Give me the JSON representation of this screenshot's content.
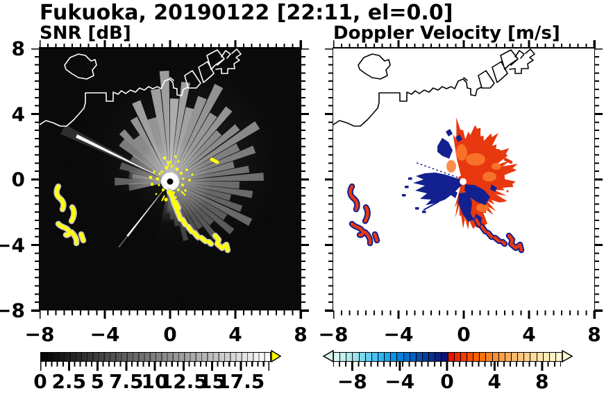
{
  "title": "Fukuoka, 20190122 [22:11, el=0.0]",
  "panels": {
    "snr": {
      "subtitle": "SNR [dB]",
      "x_tick_labels": [
        "−8",
        "−4",
        "0",
        "4",
        "8"
      ],
      "y_tick_labels": [
        "8",
        "4",
        "0",
        "−4",
        "−8"
      ],
      "colorbar": {
        "tick_labels": [
          "0",
          "2.5",
          "5",
          "7.5",
          "10",
          "12.5",
          "15",
          "17.5"
        ],
        "min": 0,
        "max": 20,
        "units": "dB",
        "style": "grayscale black to white",
        "gradient_from": "#000000",
        "gradient_to": "#ffffff",
        "overflow_arrow_color": "#ffff00"
      }
    },
    "velocity": {
      "subtitle": "Doppler Velocity [m/s]",
      "x_tick_labels": [
        "−8",
        "−4",
        "0",
        "4",
        "8"
      ],
      "colorbar": {
        "tick_labels": [
          "−8",
          "−4",
          "0",
          "4",
          "8"
        ],
        "min": -10,
        "max": 10,
        "units": "m/s",
        "style": "diverging cyan/blue to red/yellow",
        "cells": [
          "#d9f6f1",
          "#c4f0ee",
          "#aeeaec",
          "#97e2ec",
          "#7fd9ee",
          "#66cef0",
          "#4cc1f1",
          "#33b3f2",
          "#1ba4f0",
          "#0a93e8",
          "#0481da",
          "#0370cb",
          "#045fbc",
          "#064eae",
          "#083e9f",
          "#0a2f91",
          "#0b2183",
          "#0c1475",
          "#e71600",
          "#ee2a00",
          "#f23d00",
          "#f55000",
          "#f76200",
          "#f87310",
          "#f98325",
          "#fa9238",
          "#fba04a",
          "#fcad5b",
          "#fcba6b",
          "#fdc67b",
          "#fdd18a",
          "#fddb99",
          "#fee4a8",
          "#feecb6",
          "#fef2c3",
          "#fef7cf"
        ]
      }
    }
  },
  "colors": {
    "echo_strong_snr": "#ffff00",
    "echo_halo_snr": "#c7c7c7",
    "velocity_outbound_red": "#e8380f",
    "velocity_orange_patch": "#f97b2e",
    "velocity_inbound_navy": "#13208f",
    "coast_on_black": "#ffffff",
    "coast_on_white": "#000000"
  },
  "chart_data": [
    {
      "type": "heatmap",
      "panel": "left",
      "title": "SNR [dB]",
      "x_range": [
        -8,
        8
      ],
      "y_range": [
        -8,
        8
      ],
      "x_ticks": [
        -8,
        -4,
        0,
        4,
        8
      ],
      "y_ticks": [
        -8,
        -4,
        0,
        4,
        8
      ],
      "minor_tick_step": 0.5,
      "grid": false,
      "background": "black (no echo, ~0 dB)",
      "colorbar": {
        "range": [
          0,
          20
        ],
        "tick_values": [
          0,
          2.5,
          5,
          7.5,
          10,
          12.5,
          15,
          17.5
        ],
        "colormap": "grayscale",
        "over_color": "#ffff00"
      },
      "features": [
        {
          "name": "radar-site",
          "x": 0,
          "y": -0.1,
          "note": "black dot inside bright white core"
        },
        {
          "name": "clutter-fan",
          "desc": "bright radial streaks ~5-20 dB emanating from radar toward N, NE, E and SE, fading by r~4-6 km"
        },
        {
          "name": "beam-shadow",
          "desc": "dark wedge toward SW crossed by one thin bright ray"
        },
        {
          "name": "strong-echo-chain",
          "desc": "yellow >20 dB chain running SE from radar",
          "x_extent": [
            0,
            3.6
          ],
          "y_extent": [
            -4.2,
            -0.5
          ]
        },
        {
          "name": "strong-echo-cluster",
          "desc": "yellow squiggles with grey halo west of radar",
          "x_extent": [
            -7.1,
            -5.3
          ],
          "y_extent": [
            -3.8,
            -0.3
          ]
        },
        {
          "name": "isolated-echo",
          "x": 2.7,
          "y": 1.2
        }
      ]
    },
    {
      "type": "heatmap",
      "panel": "right",
      "title": "Doppler Velocity [m/s]",
      "x_range": [
        -8,
        8
      ],
      "y_range": [
        -8,
        8
      ],
      "x_ticks": [
        -8,
        -4,
        0,
        4,
        8
      ],
      "y_ticks": [
        -8,
        -4,
        0,
        4,
        8
      ],
      "minor_tick_step": 0.5,
      "grid": false,
      "background": "white (no echo)",
      "colorbar": {
        "range": [
          -10,
          10
        ],
        "tick_values": [
          -8,
          -4,
          0,
          4,
          8
        ],
        "colormap": "diverging cyan-navy / red-pale-yellow"
      },
      "features": [
        {
          "name": "radar-site",
          "x": 0,
          "y": -0.1,
          "note": "white dot at fan apex"
        },
        {
          "name": "outbound-flow",
          "desc": "red/orange +1..+7 m/s ragged fan N-E-SE of radar",
          "x_extent": [
            -2.5,
            3.0
          ],
          "y_extent": [
            -2.8,
            3.4
          ]
        },
        {
          "name": "inbound-patches",
          "desc": "navy -4..-10 m/s patches embedded in the red fan"
        },
        {
          "name": "inbound-wedge",
          "desc": "solid navy wedge due W of radar",
          "x_extent": [
            -3.4,
            0
          ],
          "y_extent": [
            -1.4,
            0.5
          ]
        },
        {
          "name": "dotted-ray",
          "desc": "thin dotted navy ray toward WNW"
        },
        {
          "name": "echo-chain",
          "desc": "red/navy chain SE of radar, same location as SNR chain"
        },
        {
          "name": "echo-cluster",
          "desc": "red/navy squiggles W of radar, same location as SNR cluster"
        }
      ]
    }
  ]
}
